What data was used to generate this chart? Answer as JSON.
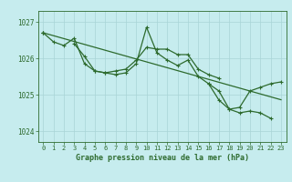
{
  "x": [
    0,
    1,
    2,
    3,
    4,
    5,
    6,
    7,
    8,
    9,
    10,
    11,
    12,
    13,
    14,
    15,
    16,
    17,
    18,
    19,
    20,
    21,
    22,
    23
  ],
  "line1": [
    1026.7,
    1026.45,
    1026.35,
    1026.55,
    1025.85,
    1025.65,
    1025.6,
    1025.65,
    1025.7,
    1025.95,
    1026.3,
    1026.25,
    1026.25,
    1026.1,
    1026.1,
    1025.7,
    1025.55,
    1025.45,
    null,
    null,
    null,
    null,
    null,
    null
  ],
  "line2": [
    1026.7,
    null,
    null,
    1026.4,
    1026.05,
    1025.65,
    1025.6,
    1025.55,
    1025.6,
    1025.85,
    1026.85,
    1026.15,
    1025.95,
    1025.8,
    1025.95,
    1025.5,
    1025.3,
    1025.1,
    1024.6,
    1024.5,
    1024.55,
    1024.5,
    1024.35,
    null
  ],
  "line3": [
    1026.7,
    null,
    null,
    null,
    null,
    null,
    null,
    null,
    null,
    null,
    null,
    null,
    null,
    null,
    null,
    null,
    1025.3,
    1024.85,
    1024.6,
    1024.65,
    1025.1,
    1025.2,
    1025.3,
    1025.35
  ],
  "line_straight": [
    1026.7,
    1026.62,
    1026.54,
    1026.46,
    1026.38,
    1026.3,
    1026.22,
    1026.14,
    1026.06,
    1025.98,
    1025.9,
    1025.82,
    1025.74,
    1025.66,
    1025.58,
    1025.5,
    1025.42,
    1025.34,
    1025.26,
    1025.18,
    1025.1,
    1025.02,
    1024.94,
    1024.86
  ],
  "ylim_min": 1023.7,
  "ylim_max": 1027.3,
  "yticks": [
    1024,
    1025,
    1026,
    1027
  ],
  "xticks": [
    0,
    1,
    2,
    3,
    4,
    5,
    6,
    7,
    8,
    9,
    10,
    11,
    12,
    13,
    14,
    15,
    16,
    17,
    18,
    19,
    20,
    21,
    22,
    23
  ],
  "xlabel": "Graphe pression niveau de la mer (hPa)",
  "line_color": "#2d6a2d",
  "bg_color": "#c6ecee",
  "grid_color": "#a8d4d6",
  "markersize": 3.5,
  "linewidth": 0.9
}
